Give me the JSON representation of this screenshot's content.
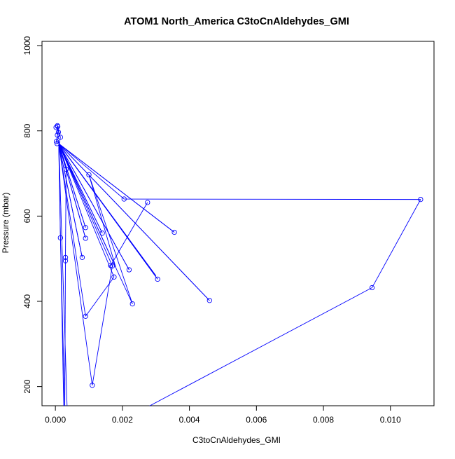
{
  "chart_data": {
    "type": "line",
    "title": "ATOM1 North_America C3toCnAldehydes_GMI",
    "xlabel": "C3toCnAldehydes_GMI",
    "ylabel": "Pressure (mbar)",
    "xlim": [
      -0.0004,
      0.0113
    ],
    "ylim": [
      1010,
      155
    ],
    "y_axis_inverted": true,
    "grid": false,
    "x_ticks": [
      {
        "value": 0.0,
        "label": "0.000"
      },
      {
        "value": 0.002,
        "label": "0.002"
      },
      {
        "value": 0.004,
        "label": "0.004"
      },
      {
        "value": 0.006,
        "label": "0.006"
      },
      {
        "value": 0.008,
        "label": "0.008"
      },
      {
        "value": 0.01,
        "label": "0.010"
      }
    ],
    "y_ticks": [
      {
        "value": 200,
        "label": "200"
      },
      {
        "value": 400,
        "label": "400"
      },
      {
        "value": 600,
        "label": "600"
      },
      {
        "value": 800,
        "label": "800"
      },
      {
        "value": 1000,
        "label": "1000"
      }
    ],
    "series": [
      {
        "color": "#0000ff",
        "marker": "open-circle",
        "points": [
          {
            "x": 2e-05,
            "y": 808,
            "marker": true
          },
          {
            "x": 7e-05,
            "y": 810,
            "marker": true
          },
          {
            "x": 5e-05,
            "y": 770,
            "marker": true
          },
          {
            "x": 3e-05,
            "y": 775,
            "marker": true
          },
          {
            "x": 6e-05,
            "y": 790,
            "marker": true
          },
          {
            "x": 9e-05,
            "y": 797,
            "marker": true
          },
          {
            "x": 6e-05,
            "y": 812,
            "marker": true
          },
          {
            "x": 0.00015,
            "y": 785,
            "marker": true
          },
          {
            "x": 0.0001,
            "y": 760,
            "marker": false
          },
          {
            "x": 0.00025,
            "y": 148,
            "marker": false
          },
          {
            "x": 0.00035,
            "y": 151,
            "marker": false
          },
          {
            "x": 0.0001,
            "y": 775,
            "marker": false
          },
          {
            "x": 0.00015,
            "y": 549,
            "marker": true
          },
          {
            "x": 0.00028,
            "y": 149,
            "marker": false
          },
          {
            "x": 0.0003,
            "y": 495,
            "marker": true
          },
          {
            "x": 0.0003,
            "y": 503,
            "marker": true
          },
          {
            "x": 0.00032,
            "y": 710,
            "marker": true
          },
          {
            "x": 0.0001,
            "y": 770,
            "marker": false
          },
          {
            "x": 0.0009,
            "y": 365,
            "marker": true
          },
          {
            "x": 0.00175,
            "y": 457,
            "marker": true
          },
          {
            "x": 0.0001,
            "y": 770,
            "marker": false
          },
          {
            "x": 0.0011,
            "y": 203,
            "marker": true
          },
          {
            "x": 0.0017,
            "y": 483,
            "marker": true
          },
          {
            "x": 0.0001,
            "y": 770,
            "marker": false
          },
          {
            "x": 0.0023,
            "y": 394,
            "marker": true
          },
          {
            "x": 0.001,
            "y": 697,
            "marker": true
          },
          {
            "x": 0.0018,
            "y": 480,
            "marker": false
          },
          {
            "x": 0.0001,
            "y": 770,
            "marker": false
          },
          {
            "x": 0.0022,
            "y": 474,
            "marker": true
          },
          {
            "x": 0.0001,
            "y": 770,
            "marker": false
          },
          {
            "x": 0.00305,
            "y": 452,
            "marker": true
          },
          {
            "x": 0.0001,
            "y": 770,
            "marker": false
          },
          {
            "x": 0.0046,
            "y": 402,
            "marker": true
          },
          {
            "x": 0.0001,
            "y": 770,
            "marker": false
          },
          {
            "x": 0.0014,
            "y": 560,
            "marker": true
          },
          {
            "x": 0.0001,
            "y": 770,
            "marker": false
          },
          {
            "x": 0.0009,
            "y": 548,
            "marker": true
          },
          {
            "x": 0.0001,
            "y": 770,
            "marker": false
          },
          {
            "x": 0.0009,
            "y": 573,
            "marker": true
          },
          {
            "x": 0.0001,
            "y": 770,
            "marker": false
          },
          {
            "x": 0.0008,
            "y": 503,
            "marker": true
          },
          {
            "x": 0.0001,
            "y": 770,
            "marker": false
          },
          {
            "x": 0.003,
            "y": 460,
            "marker": false
          },
          {
            "x": 0.0001,
            "y": 770,
            "marker": false
          },
          {
            "x": 0.00355,
            "y": 562,
            "marker": true
          },
          {
            "x": 0.0001,
            "y": 770,
            "marker": false
          },
          {
            "x": 0.00205,
            "y": 640,
            "marker": true
          },
          {
            "x": 0.0109,
            "y": 639,
            "marker": true
          },
          {
            "x": 0.00945,
            "y": 432,
            "marker": true
          },
          {
            "x": 0.0027,
            "y": 150,
            "marker": false
          }
        ]
      },
      {
        "color": "#0000ff",
        "marker": "open-circle",
        "points": [
          {
            "x": 0.00165,
            "y": 484,
            "marker": true
          },
          {
            "x": 0.00275,
            "y": 632,
            "marker": true
          }
        ]
      }
    ]
  }
}
